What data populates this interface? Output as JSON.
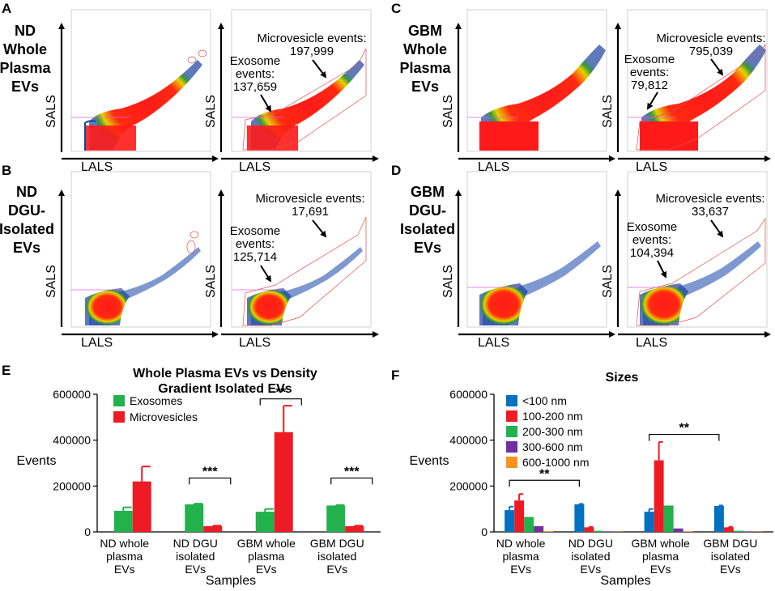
{
  "scatter_panels": {
    "A": {
      "letter": "A",
      "side_title": [
        "ND",
        "Whole",
        "Plasma",
        "EVs"
      ],
      "exosome_label": [
        "Exosome",
        "events:",
        "137,659"
      ],
      "microvesicle_label": [
        "Microvesicle events:",
        "197,999"
      ]
    },
    "B": {
      "letter": "B",
      "side_title": [
        "ND",
        "DGU-",
        "Isolated",
        "EVs"
      ],
      "exosome_label": [
        "Exosome",
        "events:",
        "125,714"
      ],
      "microvesicle_label": [
        "Microvesicle events:",
        "17,691"
      ]
    },
    "C": {
      "letter": "C",
      "side_title": [
        "GBM",
        "Whole",
        "Plasma",
        "EVs"
      ],
      "exosome_label": [
        "Exosome",
        "events:",
        "79,812"
      ],
      "microvesicle_label": [
        "Microvesicle events:",
        "795,039"
      ]
    },
    "D": {
      "letter": "D",
      "side_title": [
        "GBM",
        "DGU-",
        "Isolated",
        "EVs"
      ],
      "exosome_label": [
        "Exosome",
        "events:",
        "104,394"
      ],
      "microvesicle_label": [
        "Microvesicle events:",
        "33,637"
      ]
    },
    "x_axis_word": "LALS",
    "y_axis_word": "SALS"
  },
  "chart_data": [
    {
      "panel": "E",
      "type": "bar",
      "title": [
        "Whole Plasma EVs vs Density",
        "Gradient Isolated EVs"
      ],
      "xlabel": "Samples",
      "ylabel": "Events",
      "ylim": [
        0,
        600000
      ],
      "yticks": [
        "0",
        "200000",
        "400000",
        "600000"
      ],
      "categories": [
        [
          "ND whole",
          "plasma",
          "EVs"
        ],
        [
          "ND DGU",
          "isolated",
          "EVs"
        ],
        [
          "GBM whole",
          "plasma",
          "EVs"
        ],
        [
          "GBM DGU",
          "isolated",
          "EVs"
        ]
      ],
      "series": [
        {
          "name": "Exosomes",
          "color": "#22b14c",
          "values": [
            92000,
            120000,
            88000,
            115000
          ],
          "errors": [
            15000,
            3000,
            12000,
            2000
          ]
        },
        {
          "name": "Microvesicles",
          "color": "#ed1c24",
          "values": [
            220000,
            25000,
            435000,
            25000
          ],
          "errors": [
            65000,
            2000,
            115000,
            2000
          ]
        }
      ],
      "significance": [
        {
          "label": "***",
          "group": 1,
          "from_series": 0,
          "to_series": 1,
          "y": 235000
        },
        {
          "label": "**",
          "group": 2,
          "from_series": 0,
          "to_series": 1,
          "y": 580000
        },
        {
          "label": "***",
          "group": 3,
          "from_series": 0,
          "to_series": 1,
          "y": 235000
        }
      ]
    },
    {
      "panel": "F",
      "type": "bar",
      "title": [
        "Sizes"
      ],
      "xlabel": "Samples",
      "ylabel": "Events",
      "ylim": [
        0,
        600000
      ],
      "yticks": [
        "0",
        "200000",
        "400000",
        "600000"
      ],
      "categories": [
        [
          "ND whole",
          "plasma",
          "EVs"
        ],
        [
          "ND DGU",
          "isolated",
          "EVs"
        ],
        [
          "GBM whole",
          "plasma",
          "EVs"
        ],
        [
          "GBM DGU",
          "isolated",
          "EVs"
        ]
      ],
      "series": [
        {
          "name": "<100 nm",
          "color": "#0070c0",
          "values": [
            95000,
            120000,
            88000,
            113000
          ],
          "errors": [
            15000,
            2000,
            12000,
            2000
          ]
        },
        {
          "name": "100-200 nm",
          "color": "#ed1c24",
          "values": [
            137000,
            20000,
            312000,
            20000
          ],
          "errors": [
            28000,
            2000,
            80000,
            2000
          ]
        },
        {
          "name": "200-300 nm",
          "color": "#22b14c",
          "values": [
            65000,
            5000,
            115000,
            5000
          ],
          "errors": [
            0,
            0,
            0,
            0
          ]
        },
        {
          "name": "300-600 nm",
          "color": "#7030a0",
          "values": [
            25000,
            2000,
            15000,
            2000
          ],
          "errors": [
            0,
            0,
            0,
            0
          ]
        },
        {
          "name": "600-1000 nm",
          "color": "#f7941d",
          "values": [
            3000,
            1000,
            2000,
            1000
          ],
          "errors": [
            0,
            0,
            0,
            0
          ]
        }
      ],
      "significance": [
        {
          "label": "**",
          "from_group": 0,
          "to_group": 1,
          "series": 0,
          "y": 225000
        },
        {
          "label": "**",
          "from_group": 2,
          "to_group": 3,
          "series": 0,
          "y": 425000
        }
      ]
    }
  ]
}
